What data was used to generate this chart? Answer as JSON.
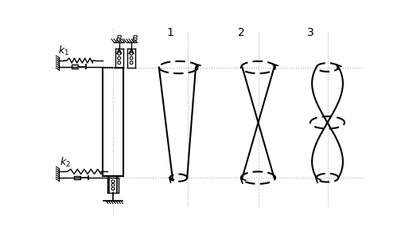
{
  "bg_color": "#ffffff",
  "line_color": "#000000",
  "dot_line_color": "#b0b0b0",
  "fig_width": 5.1,
  "fig_height": 3.0,
  "dpi": 100,
  "label1": "1",
  "label2": "2",
  "label3": "3",
  "B_label": "B",
  "k1_label": "$k_1$",
  "k2_label": "$k_2$"
}
